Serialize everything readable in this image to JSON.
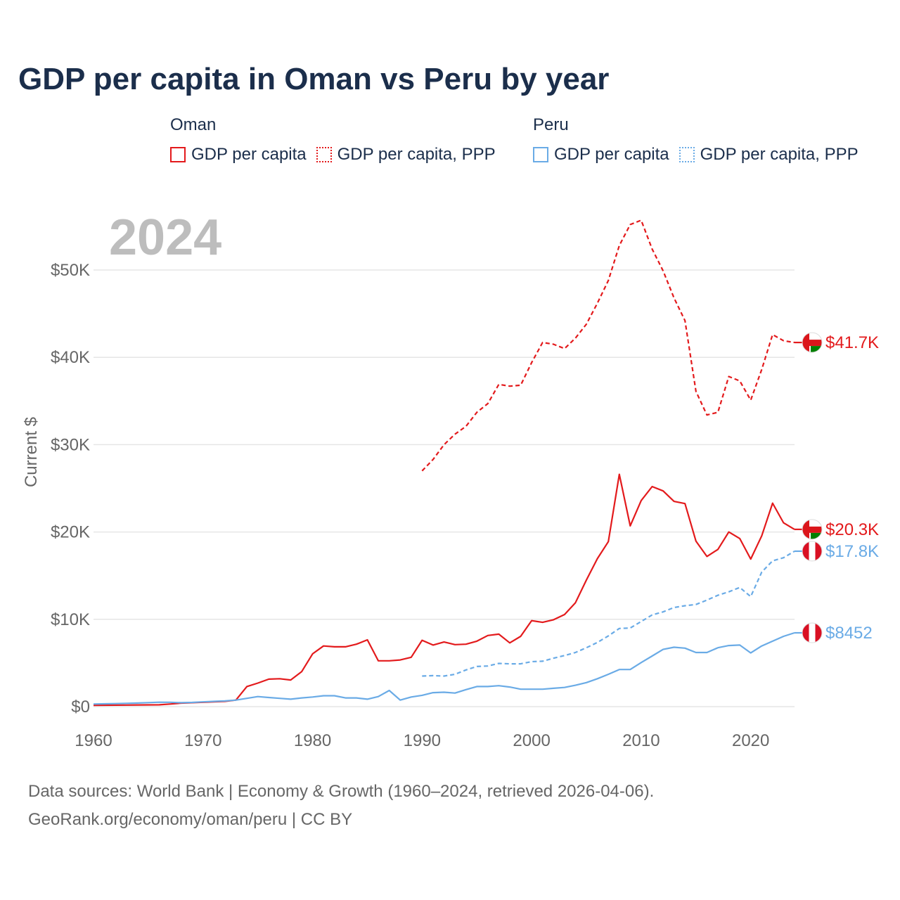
{
  "title": "GDP per capita in Oman vs Peru by year",
  "year_badge": "2024",
  "legend": {
    "oman": {
      "country": "Oman",
      "items": [
        "GDP per capita",
        "GDP per capita, PPP"
      ]
    },
    "peru": {
      "country": "Peru",
      "items": [
        "GDP per capita",
        "GDP per capita, PPP"
      ]
    }
  },
  "footer": {
    "line1": "Data sources: World Bank | Economy & Growth (1960–2024, retrieved 2026-04-06).",
    "line2": "GeoRank.org/economy/oman/peru | CC BY"
  },
  "chart_data": {
    "type": "line",
    "title": "GDP per capita in Oman vs Peru by year",
    "xlabel": "",
    "ylabel": "Current $",
    "xlim": [
      1960,
      2024
    ],
    "ylim": [
      0,
      50000
    ],
    "x_ticks": [
      1960,
      1970,
      1980,
      1990,
      2000,
      2010,
      2020
    ],
    "y_ticks": [
      0,
      10000,
      20000,
      30000,
      40000,
      50000
    ],
    "y_tick_labels": [
      "$0",
      "$10K",
      "$20K",
      "$30K",
      "$40K",
      "$50K"
    ],
    "grid": true,
    "series": [
      {
        "name": "Oman GDP per capita",
        "country": "Oman",
        "style": "solid",
        "color": "#e31a1c",
        "end_label": "$20.3K",
        "x": [
          1960,
          1961,
          1962,
          1963,
          1964,
          1965,
          1966,
          1967,
          1968,
          1969,
          1970,
          1971,
          1972,
          1973,
          1974,
          1975,
          1976,
          1977,
          1978,
          1979,
          1980,
          1981,
          1982,
          1983,
          1984,
          1985,
          1986,
          1987,
          1988,
          1989,
          1990,
          1991,
          1992,
          1993,
          1994,
          1995,
          1996,
          1997,
          1998,
          1999,
          2000,
          2001,
          2002,
          2003,
          2004,
          2005,
          2006,
          2007,
          2008,
          2009,
          2010,
          2011,
          2012,
          2013,
          2014,
          2015,
          2016,
          2017,
          2018,
          2019,
          2020,
          2021,
          2022,
          2023,
          2024
        ],
        "values": [
          150,
          160,
          170,
          180,
          190,
          200,
          210,
          300,
          400,
          450,
          500,
          550,
          600,
          750,
          2300,
          2700,
          3150,
          3200,
          3050,
          4000,
          6050,
          6950,
          6850,
          6850,
          7150,
          7650,
          5250,
          5250,
          5350,
          5650,
          7600,
          7050,
          7400,
          7100,
          7150,
          7500,
          8150,
          8300,
          7300,
          8050,
          9850,
          9650,
          9950,
          10550,
          11900,
          14500,
          16950,
          18900,
          26600,
          20700,
          23600,
          25200,
          24700,
          23500,
          23250,
          18950,
          17200,
          18000,
          20000,
          19250,
          16900,
          19550,
          23300,
          21050,
          20300
        ]
      },
      {
        "name": "Oman GDP per capita, PPP",
        "country": "Oman",
        "style": "dashed",
        "color": "#e31a1c",
        "end_label": "$41.7K",
        "x": [
          1990,
          1991,
          1992,
          1993,
          1994,
          1995,
          1996,
          1997,
          1998,
          1999,
          2000,
          2001,
          2002,
          2003,
          2004,
          2005,
          2006,
          2007,
          2008,
          2009,
          2010,
          2011,
          2012,
          2013,
          2014,
          2015,
          2016,
          2017,
          2018,
          2019,
          2020,
          2021,
          2022,
          2023,
          2024
        ],
        "values": [
          27000,
          28300,
          30000,
          31200,
          32100,
          33700,
          34700,
          36900,
          36700,
          36800,
          39400,
          41700,
          41500,
          41000,
          42200,
          43800,
          46200,
          48800,
          52800,
          55200,
          55700,
          52400,
          49900,
          46800,
          44200,
          36100,
          33400,
          33700,
          37800,
          37300,
          35100,
          38600,
          42600,
          41900,
          41700
        ]
      },
      {
        "name": "Peru GDP per capita",
        "country": "Peru",
        "style": "solid",
        "color": "#6aabe6",
        "end_label": "$8452",
        "x": [
          1960,
          1961,
          1962,
          1963,
          1964,
          1965,
          1966,
          1967,
          1968,
          1969,
          1970,
          1971,
          1972,
          1973,
          1974,
          1975,
          1976,
          1977,
          1978,
          1979,
          1980,
          1981,
          1982,
          1983,
          1984,
          1985,
          1986,
          1987,
          1988,
          1989,
          1990,
          1991,
          1992,
          1993,
          1994,
          1995,
          1996,
          1997,
          1998,
          1999,
          2000,
          2001,
          2002,
          2003,
          2004,
          2005,
          2006,
          2007,
          2008,
          2009,
          2010,
          2011,
          2012,
          2013,
          2014,
          2015,
          2016,
          2017,
          2018,
          2019,
          2020,
          2021,
          2022,
          2023,
          2024
        ],
        "values": [
          300,
          320,
          350,
          380,
          410,
          460,
          510,
          500,
          450,
          480,
          550,
          600,
          650,
          750,
          950,
          1150,
          1050,
          950,
          850,
          1000,
          1100,
          1250,
          1250,
          1000,
          1000,
          850,
          1150,
          1850,
          750,
          1100,
          1300,
          1600,
          1650,
          1550,
          1950,
          2300,
          2300,
          2400,
          2250,
          2000,
          2000,
          2000,
          2100,
          2200,
          2450,
          2750,
          3200,
          3700,
          4250,
          4250,
          5050,
          5800,
          6550,
          6800,
          6700,
          6200,
          6200,
          6750,
          7000,
          7050,
          6150,
          6950,
          7500,
          8050,
          8452
        ]
      },
      {
        "name": "Peru GDP per capita, PPP",
        "country": "Peru",
        "style": "dashed",
        "color": "#6aabe6",
        "end_label": "$17.8K",
        "x": [
          1990,
          1991,
          1992,
          1993,
          1994,
          1995,
          1996,
          1997,
          1998,
          1999,
          2000,
          2001,
          2002,
          2003,
          2004,
          2005,
          2006,
          2007,
          2008,
          2009,
          2010,
          2011,
          2012,
          2013,
          2014,
          2015,
          2016,
          2017,
          2018,
          2019,
          2020,
          2021,
          2022,
          2023,
          2024
        ],
        "values": [
          3500,
          3550,
          3500,
          3700,
          4200,
          4600,
          4650,
          4950,
          4900,
          4900,
          5150,
          5200,
          5550,
          5850,
          6200,
          6750,
          7350,
          8100,
          8950,
          9000,
          9750,
          10500,
          10850,
          11350,
          11550,
          11700,
          12200,
          12750,
          13150,
          13650,
          12600,
          15400,
          16700,
          17050,
          17800
        ]
      }
    ]
  }
}
